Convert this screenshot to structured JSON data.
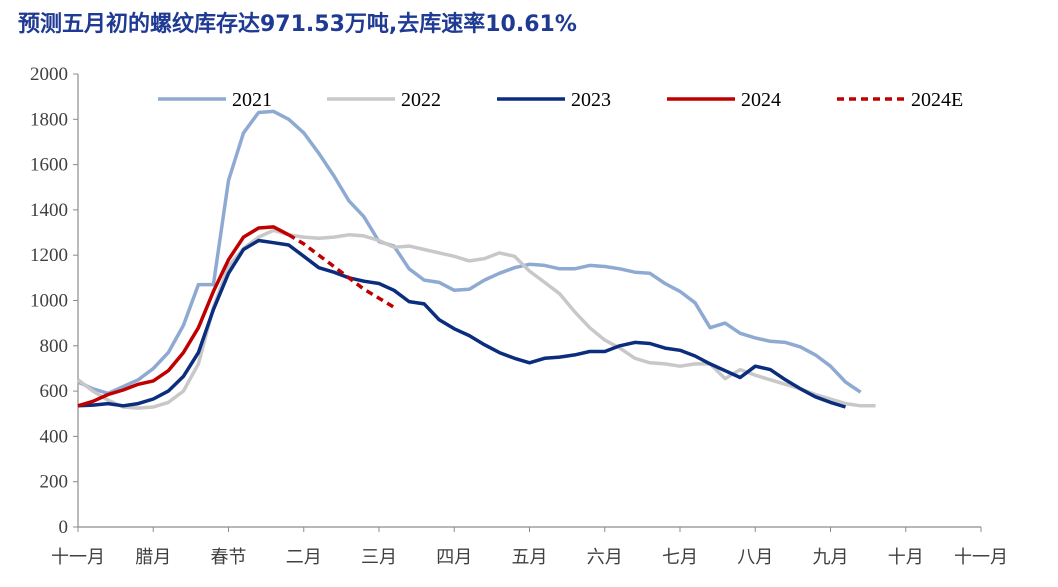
{
  "chart_data": {
    "type": "line",
    "title": "预测五月初的螺纹库存达971.53万吨,去库速率10.61%",
    "xlabel": "",
    "ylabel": "",
    "ylim": [
      0,
      2000
    ],
    "yticks": [
      0,
      200,
      400,
      600,
      800,
      1000,
      1200,
      1400,
      1600,
      1800,
      2000
    ],
    "xlim": [
      0,
      60
    ],
    "xticks": [
      {
        "label": "十一月",
        "x": 0
      },
      {
        "label": "腊月",
        "x": 5
      },
      {
        "label": "春节",
        "x": 10
      },
      {
        "label": "二月",
        "x": 15
      },
      {
        "label": "三月",
        "x": 20
      },
      {
        "label": "四月",
        "x": 25
      },
      {
        "label": "五月",
        "x": 30
      },
      {
        "label": "六月",
        "x": 35
      },
      {
        "label": "七月",
        "x": 40
      },
      {
        "label": "八月",
        "x": 45
      },
      {
        "label": "九月",
        "x": 50
      },
      {
        "label": "十月",
        "x": 55
      },
      {
        "label": "十一月",
        "x": 60
      }
    ],
    "grid": false,
    "legend_position": "top",
    "series": [
      {
        "name": "2021",
        "color": "#8eaad2",
        "dash": false,
        "points": [
          [
            0,
            640
          ],
          [
            1,
            610
          ],
          [
            2,
            590
          ],
          [
            3,
            620
          ],
          [
            4,
            650
          ],
          [
            5,
            700
          ],
          [
            6,
            770
          ],
          [
            7,
            890
          ],
          [
            8,
            1070
          ],
          [
            9,
            1070
          ],
          [
            10,
            1530
          ],
          [
            11,
            1740
          ],
          [
            12,
            1830
          ],
          [
            13,
            1835
          ],
          [
            14,
            1800
          ],
          [
            15,
            1740
          ],
          [
            16,
            1650
          ],
          [
            17,
            1550
          ],
          [
            18,
            1440
          ],
          [
            19,
            1370
          ],
          [
            20,
            1260
          ],
          [
            21,
            1240
          ],
          [
            22,
            1140
          ],
          [
            23,
            1090
          ],
          [
            24,
            1080
          ],
          [
            25,
            1045
          ],
          [
            26,
            1050
          ],
          [
            27,
            1090
          ],
          [
            28,
            1120
          ],
          [
            29,
            1145
          ],
          [
            30,
            1160
          ],
          [
            31,
            1155
          ],
          [
            32,
            1140
          ],
          [
            33,
            1140
          ],
          [
            34,
            1155
          ],
          [
            35,
            1150
          ],
          [
            36,
            1140
          ],
          [
            37,
            1125
          ],
          [
            38,
            1120
          ],
          [
            39,
            1075
          ],
          [
            40,
            1040
          ],
          [
            41,
            990
          ],
          [
            42,
            880
          ],
          [
            43,
            900
          ],
          [
            44,
            855
          ],
          [
            45,
            835
          ],
          [
            46,
            820
          ],
          [
            47,
            815
          ],
          [
            48,
            795
          ],
          [
            49,
            760
          ],
          [
            50,
            710
          ],
          [
            51,
            640
          ],
          [
            52,
            595
          ]
        ]
      },
      {
        "name": "2022",
        "color": "#c8c8c8",
        "dash": false,
        "points": [
          [
            0,
            650
          ],
          [
            1,
            600
          ],
          [
            2,
            560
          ],
          [
            3,
            530
          ],
          [
            4,
            525
          ],
          [
            5,
            530
          ],
          [
            6,
            550
          ],
          [
            7,
            600
          ],
          [
            8,
            720
          ],
          [
            9,
            970
          ],
          [
            10,
            1150
          ],
          [
            11,
            1230
          ],
          [
            12,
            1280
          ],
          [
            13,
            1310
          ],
          [
            14,
            1290
          ],
          [
            15,
            1280
          ],
          [
            16,
            1275
          ],
          [
            17,
            1280
          ],
          [
            18,
            1290
          ],
          [
            19,
            1285
          ],
          [
            20,
            1265
          ],
          [
            21,
            1235
          ],
          [
            22,
            1240
          ],
          [
            23,
            1225
          ],
          [
            24,
            1210
          ],
          [
            25,
            1195
          ],
          [
            26,
            1175
          ],
          [
            27,
            1185
          ],
          [
            28,
            1210
          ],
          [
            29,
            1195
          ],
          [
            30,
            1130
          ],
          [
            31,
            1080
          ],
          [
            32,
            1030
          ],
          [
            33,
            950
          ],
          [
            34,
            880
          ],
          [
            35,
            825
          ],
          [
            36,
            790
          ],
          [
            37,
            745
          ],
          [
            38,
            725
          ],
          [
            39,
            720
          ],
          [
            40,
            710
          ],
          [
            41,
            720
          ],
          [
            42,
            720
          ],
          [
            43,
            655
          ],
          [
            44,
            695
          ],
          [
            45,
            670
          ],
          [
            46,
            650
          ],
          [
            47,
            630
          ],
          [
            48,
            610
          ],
          [
            49,
            585
          ],
          [
            50,
            565
          ],
          [
            51,
            545
          ],
          [
            52,
            535
          ],
          [
            53,
            535
          ]
        ]
      },
      {
        "name": "2023",
        "color": "#0b2d7e",
        "dash": false,
        "points": [
          [
            0,
            535
          ],
          [
            1,
            538
          ],
          [
            2,
            545
          ],
          [
            3,
            535
          ],
          [
            4,
            545
          ],
          [
            5,
            565
          ],
          [
            6,
            600
          ],
          [
            7,
            665
          ],
          [
            8,
            770
          ],
          [
            9,
            960
          ],
          [
            10,
            1120
          ],
          [
            11,
            1225
          ],
          [
            12,
            1265
          ],
          [
            13,
            1255
          ],
          [
            14,
            1245
          ],
          [
            15,
            1195
          ],
          [
            16,
            1145
          ],
          [
            17,
            1125
          ],
          [
            18,
            1100
          ],
          [
            19,
            1085
          ],
          [
            20,
            1075
          ],
          [
            21,
            1045
          ],
          [
            22,
            995
          ],
          [
            23,
            985
          ],
          [
            24,
            915
          ],
          [
            25,
            875
          ],
          [
            26,
            845
          ],
          [
            27,
            805
          ],
          [
            28,
            770
          ],
          [
            29,
            745
          ],
          [
            30,
            725
          ],
          [
            31,
            745
          ],
          [
            32,
            750
          ],
          [
            33,
            760
          ],
          [
            34,
            775
          ],
          [
            35,
            775
          ],
          [
            36,
            800
          ],
          [
            37,
            815
          ],
          [
            38,
            810
          ],
          [
            39,
            790
          ],
          [
            40,
            780
          ],
          [
            41,
            755
          ],
          [
            42,
            720
          ],
          [
            43,
            690
          ],
          [
            44,
            660
          ],
          [
            45,
            710
          ],
          [
            46,
            695
          ],
          [
            47,
            650
          ],
          [
            48,
            610
          ],
          [
            49,
            575
          ],
          [
            50,
            550
          ],
          [
            51,
            530
          ]
        ]
      },
      {
        "name": "2024",
        "color": "#c00000",
        "dash": false,
        "points": [
          [
            0,
            535
          ],
          [
            1,
            555
          ],
          [
            2,
            585
          ],
          [
            3,
            605
          ],
          [
            4,
            630
          ],
          [
            5,
            645
          ],
          [
            6,
            690
          ],
          [
            7,
            770
          ],
          [
            8,
            880
          ],
          [
            9,
            1040
          ],
          [
            10,
            1180
          ],
          [
            11,
            1280
          ],
          [
            12,
            1320
          ],
          [
            13,
            1325
          ],
          [
            14,
            1290
          ]
        ]
      },
      {
        "name": "2024E",
        "color": "#c00000",
        "dash": true,
        "points": [
          [
            14,
            1290
          ],
          [
            15,
            1250
          ],
          [
            16,
            1200
          ],
          [
            17,
            1150
          ],
          [
            18,
            1100
          ],
          [
            19,
            1050
          ],
          [
            20,
            1010
          ],
          [
            21,
            970
          ]
        ]
      }
    ]
  }
}
